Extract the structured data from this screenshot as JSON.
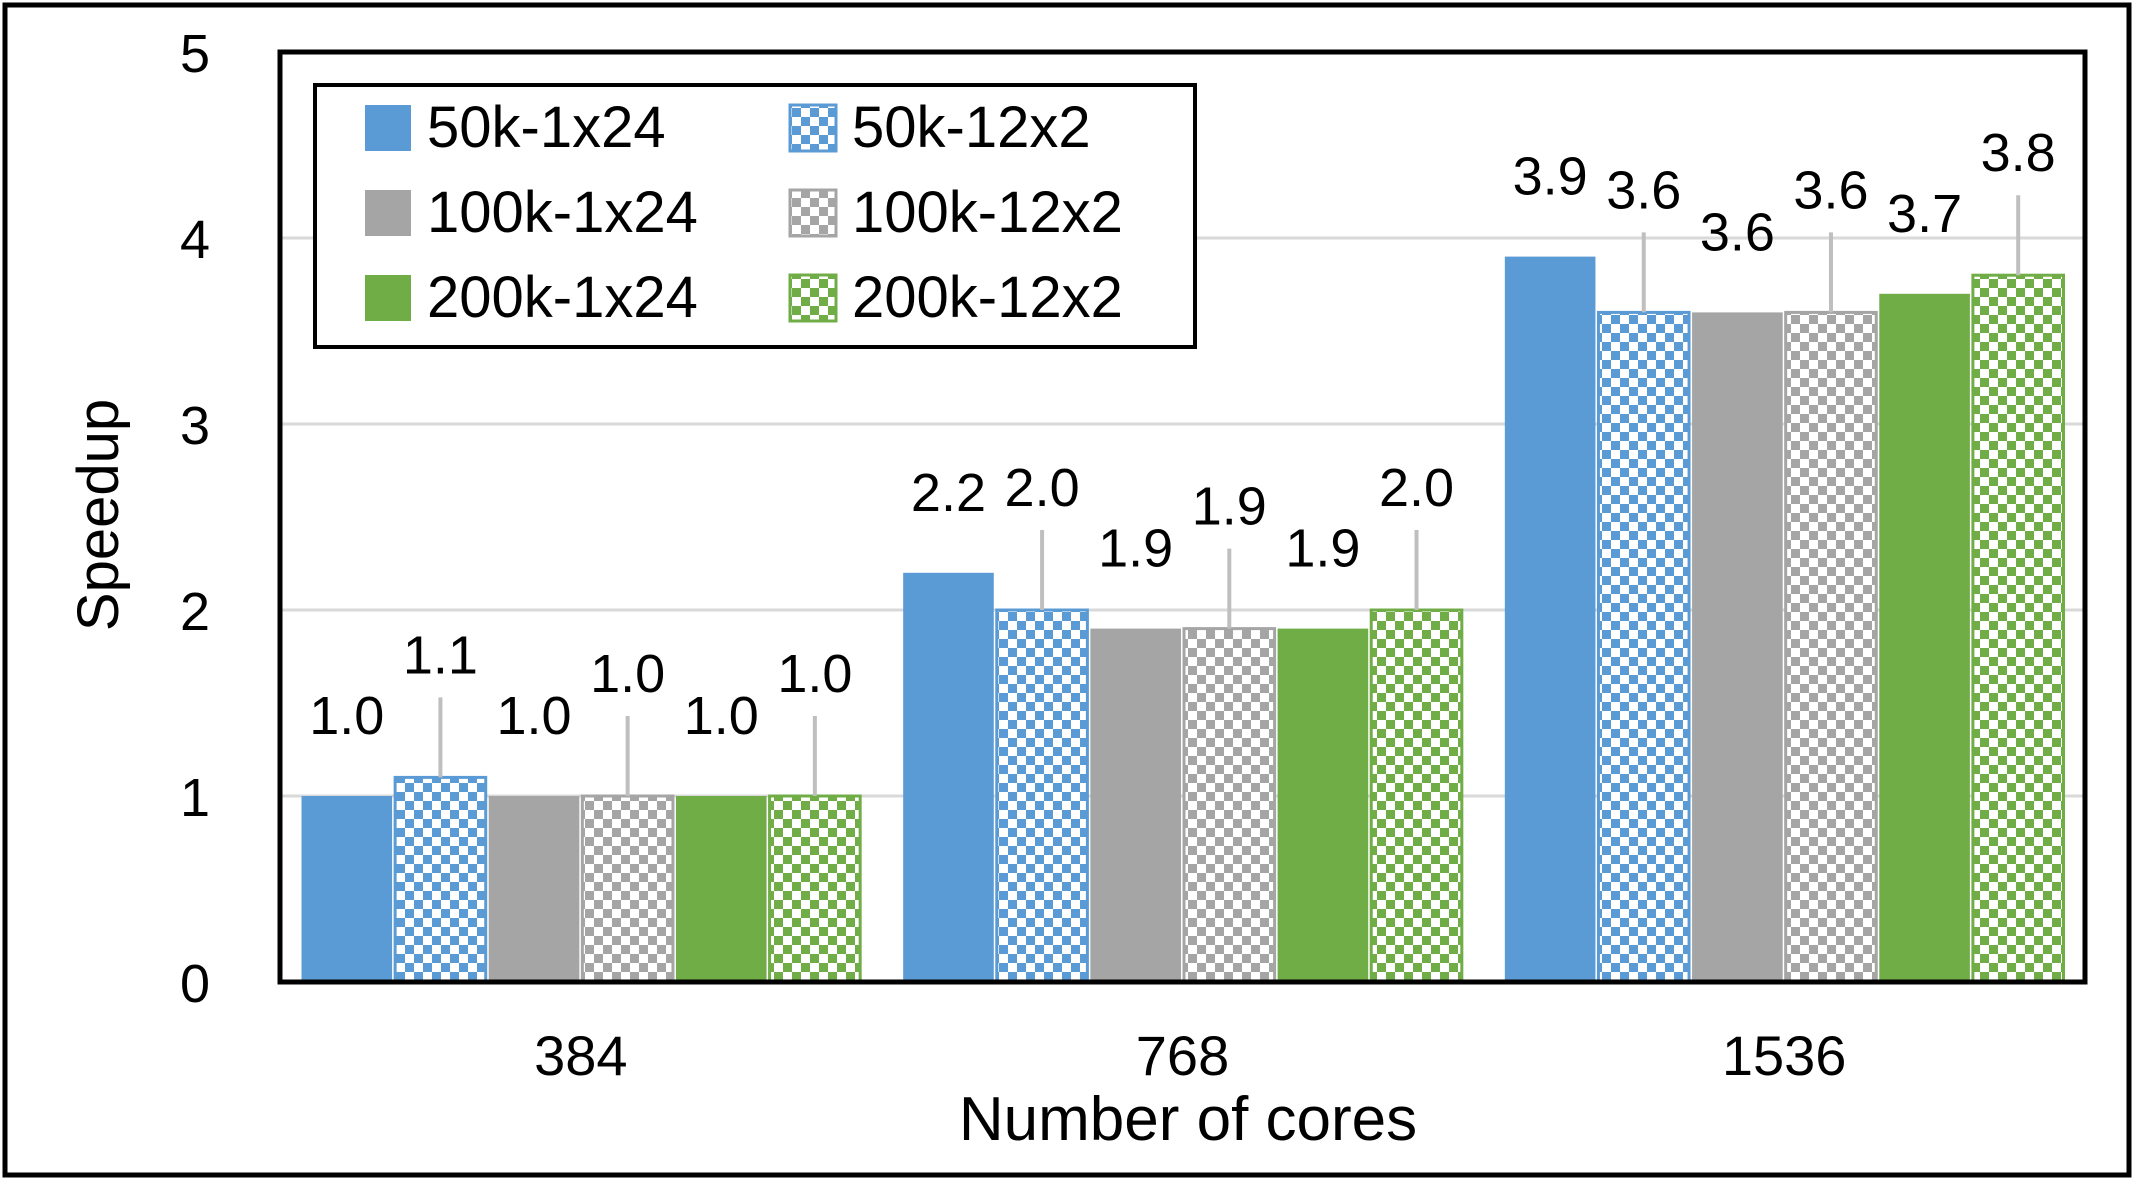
{
  "chart_data": {
    "type": "bar",
    "title": "",
    "xlabel": "Number of cores",
    "ylabel": "Speedup",
    "categories": [
      "384",
      "768",
      "1536"
    ],
    "ylim": [
      0,
      5
    ],
    "yticks": [
      "0",
      "1",
      "2",
      "3",
      "4",
      "5"
    ],
    "grid": true,
    "legend_position": "top-left",
    "series": [
      {
        "name": "50k-1x24",
        "values": [
          1.0,
          2.2,
          3.9
        ],
        "labels": [
          "1.0",
          "2.2",
          "3.9"
        ],
        "color": "#5b9bd5",
        "pattern": "solid",
        "error_bar": false
      },
      {
        "name": "50k-12x2",
        "values": [
          1.1,
          2.0,
          3.6
        ],
        "labels": [
          "1.1",
          "2.0",
          "3.6"
        ],
        "color": "#5b9bd5",
        "pattern": "checker",
        "error_bar": true
      },
      {
        "name": "100k-1x24",
        "values": [
          1.0,
          1.9,
          3.6
        ],
        "labels": [
          "1.0",
          "1.9",
          "3.6"
        ],
        "color": "#a5a5a5",
        "pattern": "solid",
        "error_bar": false
      },
      {
        "name": "100k-12x2",
        "values": [
          1.0,
          1.9,
          3.6
        ],
        "labels": [
          "1.0",
          "1.9",
          "3.6"
        ],
        "color": "#a5a5a5",
        "pattern": "checker",
        "error_bar": true
      },
      {
        "name": "200k-1x24",
        "values": [
          1.0,
          1.9,
          3.7
        ],
        "labels": [
          "1.0",
          "1.9",
          "3.7"
        ],
        "color": "#70ad47",
        "pattern": "solid",
        "error_bar": false
      },
      {
        "name": "200k-12x2",
        "values": [
          1.0,
          2.0,
          3.8
        ],
        "labels": [
          "1.0",
          "2.0",
          "3.8"
        ],
        "color": "#70ad47",
        "pattern": "checker",
        "error_bar": true
      }
    ]
  }
}
